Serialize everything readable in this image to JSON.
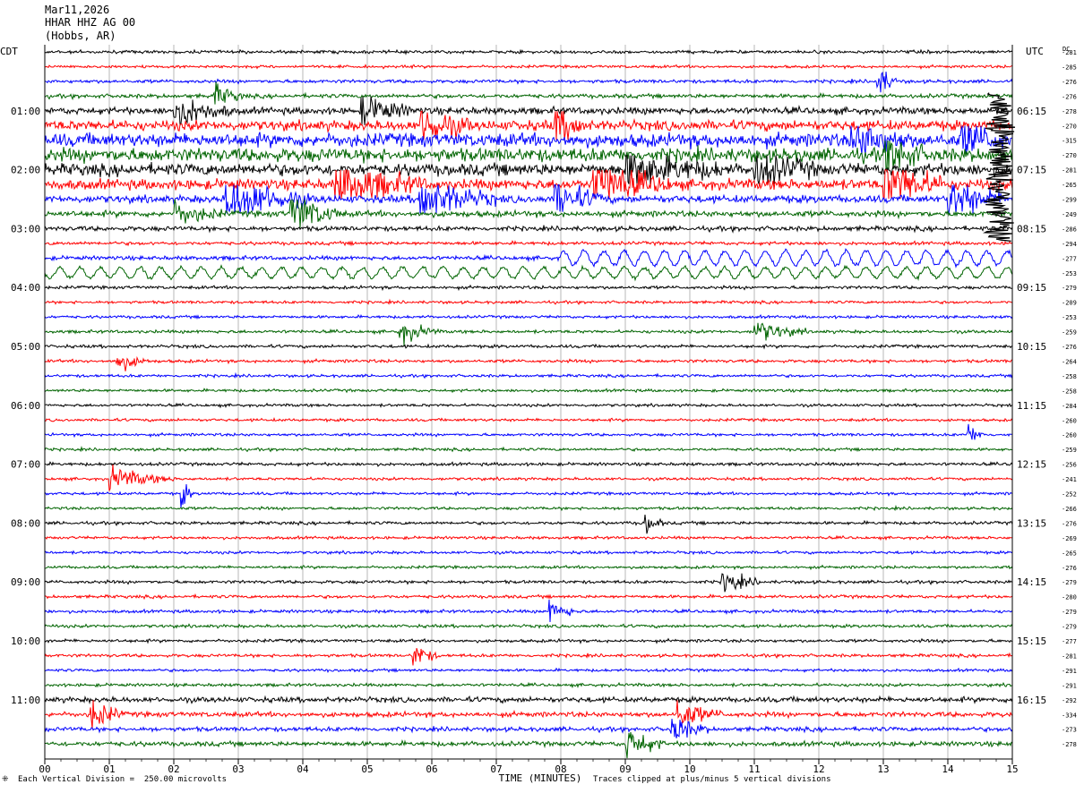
{
  "header": {
    "date": "Mar11,2026",
    "station": "HHAR HHZ AG 00",
    "location": "(Hobbs, AR)"
  },
  "chart_data": {
    "type": "line",
    "title": "HHAR HHZ AG 00",
    "left_axis_label": "CDT",
    "right_axis_label": "UTC",
    "dc_header": "DC",
    "xlabel": "TIME (MINUTES)",
    "xlim": [
      0,
      15
    ],
    "x_ticks": [
      "00",
      "01",
      "02",
      "03",
      "04",
      "05",
      "06",
      "07",
      "08",
      "09",
      "10",
      "11",
      "12",
      "13",
      "14",
      "15"
    ],
    "minutes_per_line": 15,
    "line_count": 48,
    "trace_colors": [
      "#000000",
      "#ff0000",
      "#0000ff",
      "#006400"
    ],
    "left_time_labels": [
      {
        "line": 4,
        "text": "01:00"
      },
      {
        "line": 8,
        "text": "02:00"
      },
      {
        "line": 12,
        "text": "03:00"
      },
      {
        "line": 16,
        "text": "04:00"
      },
      {
        "line": 20,
        "text": "05:00"
      },
      {
        "line": 24,
        "text": "06:00"
      },
      {
        "line": 28,
        "text": "07:00"
      },
      {
        "line": 32,
        "text": "08:00"
      },
      {
        "line": 36,
        "text": "09:00"
      },
      {
        "line": 40,
        "text": "10:00"
      },
      {
        "line": 44,
        "text": "11:00"
      }
    ],
    "right_time_labels": [
      {
        "line": 4,
        "text": "06:15"
      },
      {
        "line": 8,
        "text": "07:15"
      },
      {
        "line": 12,
        "text": "08:15"
      },
      {
        "line": 16,
        "text": "09:15"
      },
      {
        "line": 20,
        "text": "10:15"
      },
      {
        "line": 24,
        "text": "11:15"
      },
      {
        "line": 28,
        "text": "12:15"
      },
      {
        "line": 32,
        "text": "13:15"
      },
      {
        "line": 36,
        "text": "14:15"
      },
      {
        "line": 40,
        "text": "15:15"
      },
      {
        "line": 44,
        "text": "16:15"
      }
    ],
    "dc_offsets": [
      "-281",
      "-285",
      "-276",
      "-276",
      "-278",
      "-270",
      "-315",
      "-270",
      "-281",
      "-265",
      "-299",
      "-249",
      "-286",
      "-294",
      "-277",
      "-253",
      "-279",
      "-209",
      "-253",
      "-259",
      "-276",
      "-264",
      "-258",
      "-258",
      "-284",
      "-260",
      "-260",
      "-259",
      "-256",
      "-241",
      "-252",
      "-266",
      "-276",
      "-269",
      "-265",
      "-276",
      "-279",
      "-280",
      "-279",
      "-279",
      "-277",
      "-281",
      "-291",
      "-291",
      "-292",
      "-334",
      "-273",
      "-278"
    ],
    "line_activity": [
      1.0,
      0.9,
      1.1,
      1.3,
      2.2,
      3.2,
      4.3,
      4.3,
      3.8,
      3.3,
      2.4,
      1.9,
      1.5,
      1.1,
      1.3,
      1.2,
      1.0,
      0.9,
      0.9,
      1.0,
      1.0,
      1.0,
      0.9,
      0.9,
      0.9,
      0.9,
      0.9,
      0.9,
      1.0,
      0.9,
      0.9,
      0.9,
      1.0,
      0.9,
      0.9,
      0.9,
      1.0,
      1.0,
      1.0,
      1.0,
      1.0,
      1.0,
      0.9,
      1.0,
      1.7,
      1.6,
      1.4,
      1.5
    ],
    "events": [
      {
        "line": 3,
        "minute": 2.6,
        "amp": 2.2,
        "dur": 0.5
      },
      {
        "line": 2,
        "minute": 12.9,
        "amp": 3.5,
        "dur": 0.3
      },
      {
        "line": 4,
        "minute": 2.0,
        "amp": 3.0,
        "dur": 0.9
      },
      {
        "line": 4,
        "minute": 4.9,
        "amp": 3.0,
        "dur": 0.8
      },
      {
        "line": 5,
        "minute": 5.8,
        "amp": 4.0,
        "dur": 0.8
      },
      {
        "line": 5,
        "minute": 7.9,
        "amp": 5.0,
        "dur": 0.5
      },
      {
        "line": 6,
        "minute": 12.5,
        "amp": 3.5,
        "dur": 0.9
      },
      {
        "line": 6,
        "minute": 14.2,
        "amp": 4.0,
        "dur": 0.7
      },
      {
        "line": 7,
        "minute": 13.0,
        "amp": 5.0,
        "dur": 0.6
      },
      {
        "line": 8,
        "minute": 9.0,
        "amp": 3.5,
        "dur": 1.5
      },
      {
        "line": 8,
        "minute": 11.0,
        "amp": 3.0,
        "dur": 1.0
      },
      {
        "line": 9,
        "minute": 4.5,
        "amp": 4.0,
        "dur": 1.4
      },
      {
        "line": 9,
        "minute": 8.5,
        "amp": 4.5,
        "dur": 1.2
      },
      {
        "line": 9,
        "minute": 13.0,
        "amp": 5.0,
        "dur": 1.0
      },
      {
        "line": 10,
        "minute": 2.8,
        "amp": 4.5,
        "dur": 1.3
      },
      {
        "line": 10,
        "minute": 5.8,
        "amp": 4.0,
        "dur": 1.2
      },
      {
        "line": 10,
        "minute": 7.9,
        "amp": 3.5,
        "dur": 0.8
      },
      {
        "line": 10,
        "minute": 14.0,
        "amp": 4.0,
        "dur": 0.9
      },
      {
        "line": 11,
        "minute": 3.8,
        "amp": 4.0,
        "dur": 0.8
      },
      {
        "line": 11,
        "minute": 2.0,
        "amp": 2.0,
        "dur": 0.8
      },
      {
        "line": 19,
        "minute": 5.5,
        "amp": 2.0,
        "dur": 0.6
      },
      {
        "line": 19,
        "minute": 11.0,
        "amp": 2.0,
        "dur": 0.8
      },
      {
        "line": 21,
        "minute": 1.1,
        "amp": 2.0,
        "dur": 0.5
      },
      {
        "line": 26,
        "minute": 14.3,
        "amp": 2.0,
        "dur": 0.3
      },
      {
        "line": 29,
        "minute": 1.0,
        "amp": 2.0,
        "dur": 1.0
      },
      {
        "line": 30,
        "minute": 2.1,
        "amp": 3.0,
        "dur": 0.2
      },
      {
        "line": 32,
        "minute": 9.3,
        "amp": 2.0,
        "dur": 0.3
      },
      {
        "line": 36,
        "minute": 10.5,
        "amp": 2.0,
        "dur": 0.6
      },
      {
        "line": 38,
        "minute": 7.8,
        "amp": 2.0,
        "dur": 0.5
      },
      {
        "line": 41,
        "minute": 5.7,
        "amp": 2.5,
        "dur": 0.4
      },
      {
        "line": 45,
        "minute": 0.7,
        "amp": 3.0,
        "dur": 0.5
      },
      {
        "line": 45,
        "minute": 9.8,
        "amp": 2.5,
        "dur": 0.7
      },
      {
        "line": 46,
        "minute": 9.7,
        "amp": 2.5,
        "dur": 0.6
      },
      {
        "line": 47,
        "minute": 9.0,
        "amp": 3.0,
        "dur": 0.6
      }
    ],
    "wave_lines": [
      {
        "line": 14,
        "start_minute": 8.0,
        "amp": 2.5
      },
      {
        "line": 15,
        "start_minute": 0.0,
        "amp": 1.8
      }
    ],
    "spike_events": [
      {
        "minute": 14.8,
        "from_line": 4,
        "to_line": 12,
        "color": "#000000"
      }
    ]
  },
  "footer": {
    "scale_note": "Each Vertical Division =  250.00 microvolts",
    "clip_note": "Traces clipped at plus/minus 5 vertical divisions"
  }
}
